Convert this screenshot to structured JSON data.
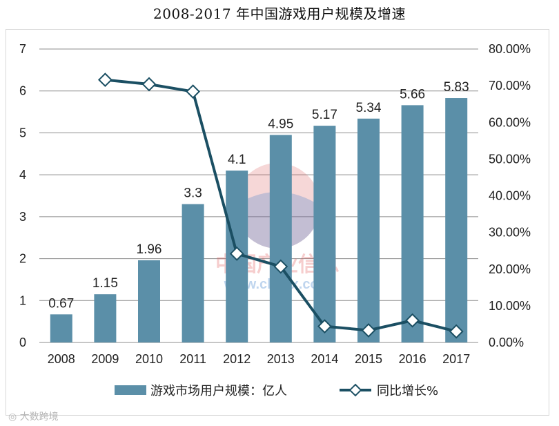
{
  "chart_data": {
    "type": "bar+line",
    "title": "2008-2017 年中国游戏用户规模及增速",
    "categories": [
      "2008",
      "2009",
      "2010",
      "2011",
      "2012",
      "2013",
      "2014",
      "2015",
      "2016",
      "2017"
    ],
    "series": [
      {
        "name": "游戏市场用户规模：亿人",
        "type": "bar",
        "axis": "left",
        "color": "#5b8fa8",
        "values": [
          0.67,
          1.15,
          1.96,
          3.3,
          4.1,
          4.95,
          5.17,
          5.34,
          5.66,
          5.83
        ],
        "labels": [
          "0.67",
          "1.15",
          "1.96",
          "3.3",
          "4.1",
          "4.95",
          "5.17",
          "5.34",
          "5.66",
          "5.83"
        ]
      },
      {
        "name": "同比增长%",
        "type": "line",
        "axis": "right",
        "color": "#1b4f63",
        "marker": "diamond",
        "values": [
          null,
          71.6,
          70.4,
          68.4,
          24.2,
          20.7,
          4.4,
          3.3,
          6.0,
          3.0
        ]
      }
    ],
    "y_left": {
      "min": 0,
      "max": 7,
      "ticks": [
        "0",
        "1",
        "2",
        "3",
        "4",
        "5",
        "6",
        "7"
      ]
    },
    "y_right": {
      "min": 0,
      "max": 80,
      "ticks": [
        "0.00%",
        "10.00%",
        "20.00%",
        "30.00%",
        "40.00%",
        "50.00%",
        "60.00%",
        "70.00%",
        "80.00%"
      ]
    },
    "grid": "horizontal",
    "legend": "bottom"
  },
  "watermark": {
    "main": "中国产业信息",
    "url": "www.chyxx.com",
    "corner": "大数跨境"
  }
}
